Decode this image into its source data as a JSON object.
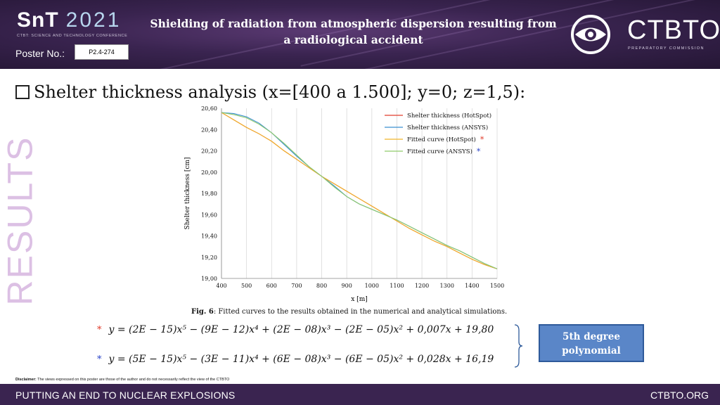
{
  "header": {
    "logo_snt": "SnT",
    "logo_year": "2021",
    "logo_subtitle": "CTBT: SCIENCE AND TECHNOLOGY CONFERENCE",
    "poster_label": "Poster No.:",
    "poster_number": "P2.4-274",
    "title": "Shielding of radiation from atmospheric dispersion resulting from a radiological accident",
    "ctbto_name": "CTBTO",
    "ctbto_subtitle": "PREPARATORY COMMISSION"
  },
  "side_label": "RESULTS",
  "section_heading": "Shelter thickness analysis (x=[400 a 1.500]; y=0; z=1,5):",
  "chart_data": {
    "type": "line",
    "xlabel": "x [m]",
    "ylabel": "Shelter thickness [cm]",
    "xlim": [
      400,
      1500
    ],
    "ylim": [
      19.0,
      20.6
    ],
    "x_ticks": [
      400,
      500,
      600,
      700,
      800,
      900,
      1000,
      1100,
      1200,
      1300,
      1400,
      1500
    ],
    "y_ticks": [
      "19,00",
      "19,20",
      "19,40",
      "19,60",
      "19,80",
      "20,00",
      "20,20",
      "20,40",
      "20,60"
    ],
    "x": [
      400,
      450,
      500,
      550,
      600,
      650,
      700,
      750,
      800,
      850,
      900,
      950,
      1000,
      1050,
      1100,
      1150,
      1200,
      1250,
      1300,
      1350,
      1400,
      1450,
      1500
    ],
    "series": [
      {
        "name": "Shelter thickness (HotSpot)",
        "color": "#e03c2c",
        "values": [
          20.56,
          20.49,
          20.42,
          20.36,
          20.29,
          20.2,
          20.12,
          20.04,
          19.96,
          19.89,
          19.82,
          19.75,
          19.68,
          19.61,
          19.54,
          19.47,
          19.41,
          19.35,
          19.3,
          19.24,
          19.18,
          19.13,
          19.09
        ]
      },
      {
        "name": "Shelter thickness (ANSYS)",
        "color": "#3a8fd0",
        "values": [
          20.56,
          20.55,
          20.52,
          20.46,
          20.37,
          20.26,
          20.15,
          20.05,
          19.96,
          19.87,
          19.77,
          19.7,
          19.65,
          19.6,
          19.55,
          19.49,
          19.43,
          19.37,
          19.31,
          19.26,
          19.2,
          19.14,
          19.09
        ]
      },
      {
        "name": "Fitted curve (HotSpot)",
        "color": "#f0b429",
        "marker": "*",
        "marker_color": "#e03c2c",
        "values": [
          20.56,
          20.49,
          20.42,
          20.36,
          20.29,
          20.2,
          20.12,
          20.04,
          19.96,
          19.89,
          19.82,
          19.75,
          19.68,
          19.61,
          19.54,
          19.47,
          19.41,
          19.35,
          19.3,
          19.24,
          19.18,
          19.13,
          19.09
        ]
      },
      {
        "name": "Fitted curve (ANSYS)",
        "color": "#8fc96b",
        "marker": "*",
        "marker_color": "#2b45c8",
        "values": [
          20.56,
          20.54,
          20.51,
          20.45,
          20.37,
          20.27,
          20.16,
          20.05,
          19.96,
          19.86,
          19.77,
          19.7,
          19.65,
          19.6,
          19.55,
          19.49,
          19.43,
          19.37,
          19.31,
          19.26,
          19.2,
          19.14,
          19.09
        ]
      }
    ],
    "grid": "vertical",
    "legend_position": "top-right"
  },
  "caption_label": "Fig. 6",
  "caption_text": ": Fitted curves to the results obtained in the numerical and analytical simulations.",
  "equations": {
    "hotspot_marker": "*",
    "hotspot": "y = (2E − 15)x⁵ − (9E − 12)x⁴ + (2E − 08)x³ − (2E − 05)x² + 0,007x + 19,80",
    "ansys_marker": "*",
    "ansys": "y = (5E − 15)x⁵ − (3E − 11)x⁴ + (6E − 08)x³ − (6E − 05)x² + 0,028x + 16,19",
    "marker_colors": {
      "hotspot": "#e03c2c",
      "ansys": "#2b45c8"
    }
  },
  "polynomial_box": {
    "line1": "5th degree",
    "line2": "polynomial"
  },
  "disclaimer_label": "Disclaimer:",
  "disclaimer_text": " The views expressed on this poster are those of the author and do not necessarily reflect the view of the CTBTO",
  "footer": {
    "left": "PUTTING AN END TO NUCLEAR EXPLOSIONS",
    "right": "CTBTO.ORG"
  },
  "colors": {
    "header_bg": "#3a2450",
    "footer_bg": "#3a2450",
    "side_label": "#dcc0e4",
    "poly_box": "#5a86c8"
  }
}
